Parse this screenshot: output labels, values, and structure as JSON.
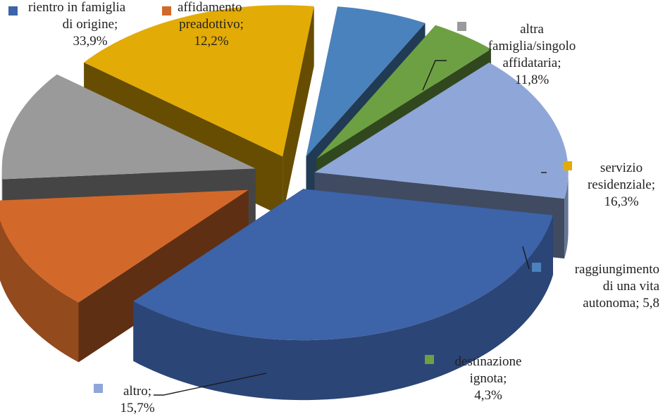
{
  "chart_data": {
    "type": "pie",
    "title": "",
    "style": "3d-exploded",
    "legend": "inline",
    "slices": [
      {
        "name": "rientro in famiglia di origine",
        "value": 33.9,
        "unit": "%",
        "color": "#3d63a8",
        "label_lines": [
          "rientro in famiglia",
          "di origine;",
          "33,9%"
        ]
      },
      {
        "name": "affidamento preadottivo",
        "value": 12.2,
        "unit": "%",
        "color": "#d2692a",
        "label_lines": [
          "affidamento",
          "preadottivo;",
          "12,2%"
        ]
      },
      {
        "name": "altra famiglia/singolo affidataria",
        "value": 11.8,
        "unit": "%",
        "color": "#9a9a9a",
        "label_lines": [
          "altra",
          "famiglia/singolo",
          "affidataria;",
          "11,8%"
        ]
      },
      {
        "name": "servizio residenziale",
        "value": 16.3,
        "unit": "%",
        "color": "#e3ab05",
        "label_lines": [
          "servizio",
          "residenziale;",
          "16,3%"
        ]
      },
      {
        "name": "raggiungimento di una vita autonoma",
        "value": 5.8,
        "unit": "%",
        "color": "#4a82bd",
        "label_lines": [
          "raggiungimento",
          "di una vita",
          "autonoma; 5,8"
        ]
      },
      {
        "name": "destinazione ignota",
        "value": 4.3,
        "unit": "%",
        "color": "#6da043",
        "label_lines": [
          "destinazione",
          "ignota;",
          "4,3%"
        ]
      },
      {
        "name": "altro",
        "value": 15.7,
        "unit": "%",
        "color": "#8fa6d8",
        "label_lines": [
          "altro;",
          "15,7%"
        ]
      }
    ]
  }
}
